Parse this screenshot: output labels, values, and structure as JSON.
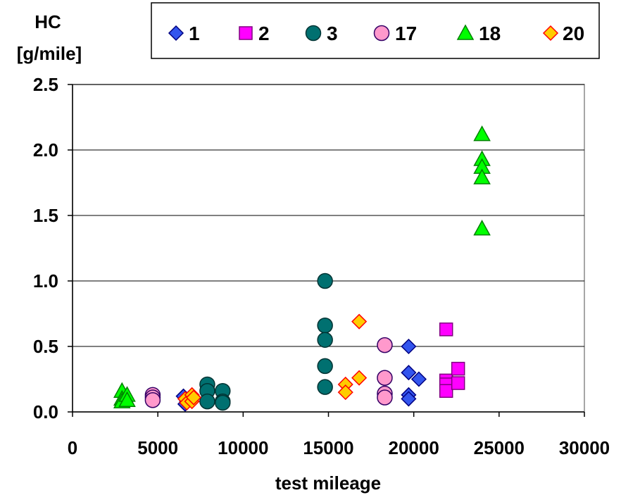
{
  "chart_data": {
    "type": "scatter",
    "ylabel_line1": "HC",
    "ylabel_line2": "[g/mile]",
    "xlabel": "test mileage",
    "xlim": [
      0,
      30000
    ],
    "ylim": [
      0,
      2.5
    ],
    "xticks": [
      "0",
      "5000",
      "10000",
      "15000",
      "20000",
      "25000",
      "30000"
    ],
    "yticks": [
      "0.0",
      "0.5",
      "1.0",
      "1.5",
      "2.0",
      "2.5"
    ],
    "xtick_values": [
      0,
      5000,
      10000,
      15000,
      20000,
      25000,
      30000
    ],
    "ytick_values": [
      0,
      0.5,
      1.0,
      1.5,
      2.0,
      2.5
    ],
    "grid": "horizontal",
    "legend_position": "top",
    "series": [
      {
        "name": "1",
        "marker": "diamond",
        "fill": "#3355ee",
        "stroke": "#000080",
        "points": [
          [
            6500,
            0.12
          ],
          [
            6600,
            0.06
          ],
          [
            6700,
            0.08
          ],
          [
            19700,
            0.5
          ],
          [
            19700,
            0.3
          ],
          [
            19700,
            0.13
          ],
          [
            19700,
            0.1
          ],
          [
            20300,
            0.25
          ]
        ]
      },
      {
        "name": "2",
        "marker": "square",
        "fill": "#ff00ff",
        "stroke": "#800080",
        "points": [
          [
            21900,
            0.63
          ],
          [
            21900,
            0.24
          ],
          [
            21900,
            0.21
          ],
          [
            21900,
            0.16
          ],
          [
            22600,
            0.33
          ],
          [
            22600,
            0.22
          ]
        ]
      },
      {
        "name": "3",
        "marker": "circle",
        "fill": "#007070",
        "stroke": "#003333",
        "points": [
          [
            7900,
            0.21
          ],
          [
            7900,
            0.16
          ],
          [
            7900,
            0.08
          ],
          [
            8800,
            0.16
          ],
          [
            8800,
            0.08
          ],
          [
            8800,
            0.07
          ],
          [
            14800,
            1.0
          ],
          [
            14800,
            0.66
          ],
          [
            14800,
            0.55
          ],
          [
            14800,
            0.35
          ],
          [
            14800,
            0.19
          ]
        ]
      },
      {
        "name": "17",
        "marker": "circle",
        "fill": "#ff99cc",
        "stroke": "#330066",
        "points": [
          [
            4700,
            0.13
          ],
          [
            4700,
            0.11
          ],
          [
            4700,
            0.09
          ],
          [
            18300,
            0.51
          ],
          [
            18300,
            0.26
          ],
          [
            18300,
            0.14
          ],
          [
            18300,
            0.11
          ]
        ]
      },
      {
        "name": "18",
        "marker": "triangle",
        "fill": "#00ff00",
        "stroke": "#008000",
        "points": [
          [
            2900,
            0.16
          ],
          [
            2900,
            0.1
          ],
          [
            2900,
            0.08
          ],
          [
            3200,
            0.13
          ],
          [
            3200,
            0.09
          ],
          [
            24000,
            2.12
          ],
          [
            24000,
            1.93
          ],
          [
            24000,
            1.87
          ],
          [
            24000,
            1.79
          ],
          [
            24000,
            1.4
          ]
        ]
      },
      {
        "name": "20",
        "marker": "diamond",
        "fill": "#ffcc00",
        "stroke": "#ff0000",
        "points": [
          [
            6600,
            0.1
          ],
          [
            6700,
            0.07
          ],
          [
            7000,
            0.13
          ],
          [
            7000,
            0.08
          ],
          [
            7100,
            0.11
          ],
          [
            16000,
            0.21
          ],
          [
            16000,
            0.15
          ],
          [
            16800,
            0.69
          ],
          [
            16800,
            0.26
          ]
        ]
      }
    ]
  }
}
